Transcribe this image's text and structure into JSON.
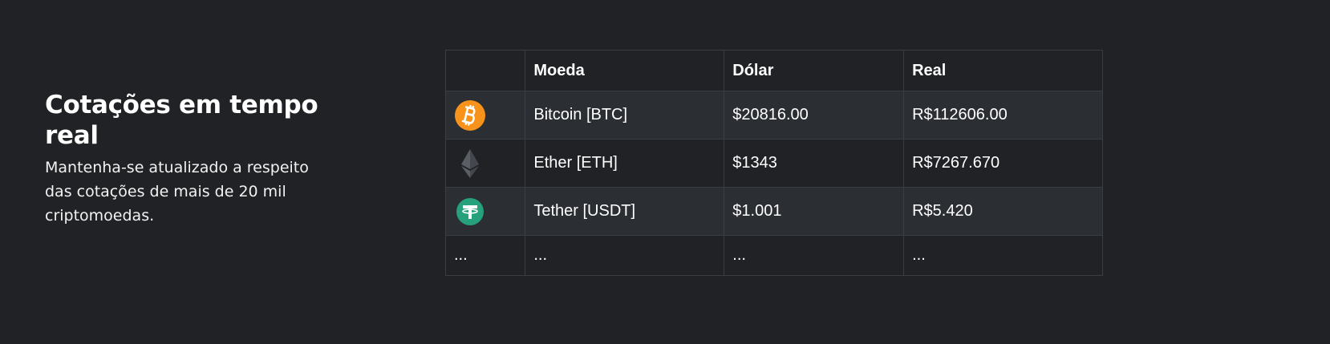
{
  "intro": {
    "title": "Cotações em tempo real",
    "description": "Mantenha-se atualizado a respeito das cotações de mais de 20 mil criptomoedas."
  },
  "table": {
    "headers": [
      "",
      "Moeda",
      "Dólar",
      "Real"
    ],
    "rows": [
      {
        "icon": "bitcoin-icon",
        "coin": "Bitcoin [BTC]",
        "usd": "$20816.00",
        "brl": "R$112606.00"
      },
      {
        "icon": "ethereum-icon",
        "coin": "Ether [ETH]",
        "usd": "$1343",
        "brl": "R$7267.670"
      },
      {
        "icon": "tether-icon",
        "coin": "Tether [USDT]",
        "usd": "$1.001",
        "brl": "R$5.420"
      },
      {
        "icon": "",
        "icon_text": "...",
        "coin": "...",
        "usd": "...",
        "brl": "..."
      }
    ]
  },
  "colors": {
    "background": "#212225",
    "row_alt": "#2b2e32",
    "bitcoin": "#f7931a",
    "ethereum": "#5a5f66",
    "tether": "#26a17b"
  }
}
